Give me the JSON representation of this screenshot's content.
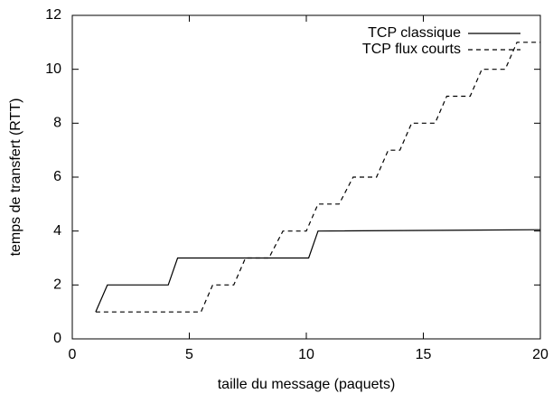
{
  "chart_data": {
    "type": "line",
    "xlabel": "taille du message (paquets)",
    "ylabel": "temps de transfert (RTT)",
    "xlim": [
      0,
      20
    ],
    "xticks": [
      0,
      5,
      10,
      15,
      20
    ],
    "ylim": [
      0,
      12
    ],
    "yticks": [
      0,
      2,
      4,
      6,
      8,
      10,
      12
    ],
    "grid": false,
    "legend": "top right",
    "series": [
      {
        "name": "TCP classique",
        "color": "#000000",
        "linestyle": "solid",
        "x": [
          1,
          1.5,
          4.1,
          4.5,
          10.1,
          10.5,
          20
        ],
        "values": [
          1,
          2,
          2,
          3,
          3,
          4,
          4.05
        ]
      },
      {
        "name": "TCP flux courts",
        "color": "#000000",
        "linestyle": "dashed",
        "x": [
          1,
          5.5,
          6,
          6.9,
          7.4,
          8.4,
          9,
          10,
          10.5,
          11.4,
          12,
          13,
          13.5,
          14,
          14.5,
          15.5,
          16,
          17,
          17.5,
          18.5,
          19,
          20
        ],
        "values": [
          1,
          1,
          2,
          2,
          3,
          3,
          4,
          4,
          5,
          5,
          6,
          6,
          7,
          7,
          8,
          8,
          9,
          9,
          10,
          10,
          11,
          11
        ]
      }
    ]
  }
}
